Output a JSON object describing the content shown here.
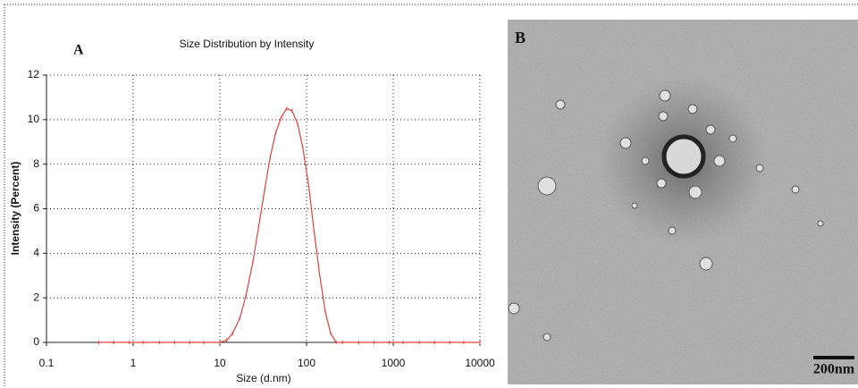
{
  "chart_data": {
    "type": "line",
    "title": "Size Distribution by Intensity",
    "panel_label": "A",
    "x_label": "Size (d.nm)",
    "y_label": "Intensity (Percent)",
    "xscale": "log",
    "xlim": [
      0.1,
      10000
    ],
    "xticks": [
      0.1,
      1,
      10,
      100,
      1000,
      10000
    ],
    "ylim": [
      0,
      12
    ],
    "yticks": [
      0,
      2,
      4,
      6,
      8,
      10,
      12
    ],
    "grid": true,
    "x": [
      0.4,
      0.6,
      0.9,
      1.3,
      2,
      3,
      4.5,
      6.5,
      10,
      12,
      14,
      17,
      20,
      24,
      28,
      33,
      38,
      44,
      51,
      59,
      68,
      79,
      91,
      106,
      122,
      142,
      164,
      190,
      220,
      260,
      400,
      600,
      900,
      1300,
      2000,
      3000,
      4500,
      6500,
      10000
    ],
    "series": [
      {
        "name": "Intensity",
        "color": "#e8403a",
        "values": [
          0,
          0,
          0,
          0,
          0,
          0,
          0,
          0,
          0,
          0.1,
          0.4,
          1.1,
          2.1,
          3.6,
          5.2,
          6.9,
          8.3,
          9.4,
          10.1,
          10.5,
          10.4,
          9.8,
          8.7,
          7.0,
          5.0,
          3.0,
          1.4,
          0.4,
          0,
          0,
          0,
          0,
          0,
          0,
          0,
          0,
          0,
          0,
          0
        ]
      }
    ]
  },
  "image": {
    "label": "B",
    "scale_bar": "200nm"
  }
}
